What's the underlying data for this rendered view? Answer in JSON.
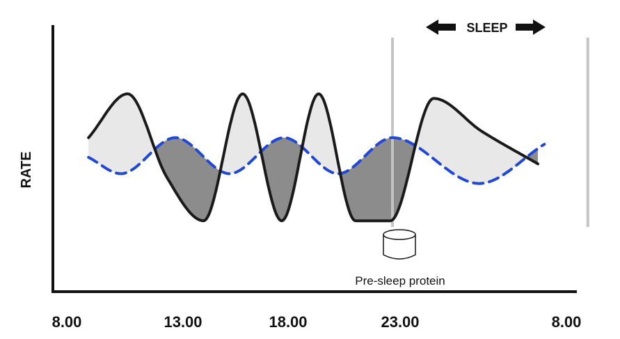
{
  "chart_data": {
    "type": "line",
    "ylabel": "RATE",
    "x_tick_labels": [
      "8.00",
      "13.00",
      "18.00",
      "23.00",
      "8.00"
    ],
    "series": [
      {
        "style": "solid",
        "color": "#1a1a1a",
        "x": [
          9.0,
          10.8,
          12.6,
          14.3,
          16.1,
          17.9,
          19.6,
          21.3,
          22.9,
          24.9,
          27.1,
          29.7
        ],
        "y": [
          0.3,
          0.97,
          -0.3,
          -0.97,
          0.97,
          -0.97,
          0.97,
          -0.97,
          -0.97,
          0.9,
          0.4,
          -0.1
        ]
      },
      {
        "style": "dashed",
        "color": "#1f48d8",
        "x": [
          9.0,
          10.5,
          13.0,
          15.5,
          18.0,
          20.5,
          23.0,
          27.0,
          30.0
        ],
        "y": [
          0.0,
          -0.25,
          0.3,
          -0.25,
          0.3,
          -0.25,
          0.3,
          -0.4,
          0.2
        ]
      }
    ],
    "shading": {
      "light_fill": "#e8e8e8",
      "dark_fill": "#8c8c8c"
    },
    "annotations": {
      "sleep_label": "SLEEP",
      "sleep_start": 23.0,
      "sleep_end": 32.0,
      "protein_label": "Pre-sleep protein",
      "protein_time": 23.0
    }
  }
}
